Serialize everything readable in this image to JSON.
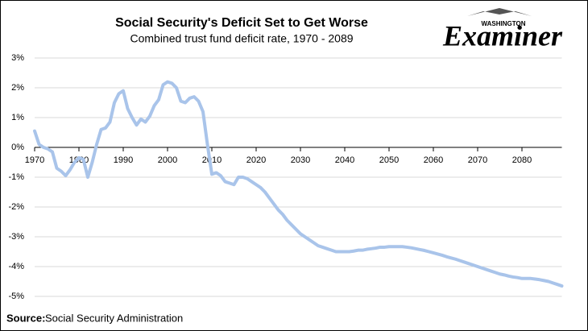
{
  "logo": {
    "small": "WASHINGTON",
    "large": "Examiner"
  },
  "chart_data": {
    "type": "line",
    "title": "Social Security's Deficit Set to Get Worse",
    "subtitle": "Combined trust fund deficit rate, 1970 - 2089",
    "source_label": "Source:",
    "source": "Social Security Administration",
    "x": [
      1970,
      1971,
      1972,
      1973,
      1974,
      1975,
      1976,
      1977,
      1978,
      1979,
      1980,
      1981,
      1982,
      1983,
      1984,
      1985,
      1986,
      1987,
      1988,
      1989,
      1990,
      1991,
      1992,
      1993,
      1994,
      1995,
      1996,
      1997,
      1998,
      1999,
      2000,
      2001,
      2002,
      2003,
      2004,
      2005,
      2006,
      2007,
      2008,
      2009,
      2010,
      2011,
      2012,
      2013,
      2014,
      2015,
      2016,
      2017,
      2018,
      2019,
      2020,
      2021,
      2022,
      2023,
      2024,
      2025,
      2026,
      2027,
      2028,
      2029,
      2030,
      2031,
      2032,
      2033,
      2034,
      2035,
      2036,
      2037,
      2038,
      2039,
      2040,
      2041,
      2042,
      2043,
      2044,
      2045,
      2046,
      2047,
      2048,
      2049,
      2050,
      2051,
      2052,
      2053,
      2054,
      2055,
      2056,
      2057,
      2058,
      2059,
      2060,
      2061,
      2062,
      2063,
      2064,
      2065,
      2066,
      2067,
      2068,
      2069,
      2070,
      2071,
      2072,
      2073,
      2074,
      2075,
      2076,
      2077,
      2078,
      2079,
      2080,
      2081,
      2082,
      2083,
      2084,
      2085,
      2086,
      2087,
      2088,
      2089
    ],
    "series": [
      {
        "name": "Combined trust fund deficit rate",
        "color": "#a9c4ea",
        "values": [
          0.55,
          0.1,
          0.0,
          -0.05,
          -0.15,
          -0.7,
          -0.8,
          -0.95,
          -0.75,
          -0.5,
          -0.35,
          -0.4,
          -1.0,
          -0.5,
          0.1,
          0.6,
          0.65,
          0.85,
          1.5,
          1.8,
          1.9,
          1.3,
          1.0,
          0.75,
          0.95,
          0.85,
          1.05,
          1.4,
          1.6,
          2.1,
          2.2,
          2.15,
          2.0,
          1.55,
          1.5,
          1.65,
          1.7,
          1.55,
          1.2,
          0.1,
          -0.9,
          -0.85,
          -0.95,
          -1.15,
          -1.2,
          -1.25,
          -1.0,
          -1.0,
          -1.05,
          -1.15,
          -1.25,
          -1.35,
          -1.5,
          -1.7,
          -1.9,
          -2.1,
          -2.25,
          -2.45,
          -2.6,
          -2.75,
          -2.9,
          -3.0,
          -3.1,
          -3.2,
          -3.3,
          -3.35,
          -3.4,
          -3.45,
          -3.5,
          -3.5,
          -3.5,
          -3.5,
          -3.48,
          -3.45,
          -3.45,
          -3.42,
          -3.4,
          -3.38,
          -3.35,
          -3.35,
          -3.33,
          -3.33,
          -3.33,
          -3.33,
          -3.35,
          -3.37,
          -3.4,
          -3.43,
          -3.46,
          -3.5,
          -3.54,
          -3.58,
          -3.62,
          -3.67,
          -3.71,
          -3.75,
          -3.8,
          -3.85,
          -3.9,
          -3.95,
          -4.0,
          -4.05,
          -4.1,
          -4.15,
          -4.2,
          -4.25,
          -4.28,
          -4.32,
          -4.35,
          -4.37,
          -4.4,
          -4.4,
          -4.4,
          -4.42,
          -4.44,
          -4.47,
          -4.5,
          -4.55,
          -4.6,
          -4.65
        ]
      }
    ],
    "xlim": [
      1970,
      2089
    ],
    "xticks": [
      1970,
      1980,
      1990,
      2000,
      2010,
      2020,
      2030,
      2040,
      2050,
      2060,
      2070,
      2080
    ],
    "ylim": [
      -5,
      3
    ],
    "yticks": [
      {
        "value": -5,
        "label": "-5%"
      },
      {
        "value": -4,
        "label": "-4%"
      },
      {
        "value": -3,
        "label": "-3%"
      },
      {
        "value": -2,
        "label": "-2%"
      },
      {
        "value": -1,
        "label": "-1%"
      },
      {
        "value": 0,
        "label": "0%"
      },
      {
        "value": 1,
        "label": "1%"
      },
      {
        "value": 2,
        "label": "2%"
      },
      {
        "value": 3,
        "label": "3%"
      }
    ],
    "grid": true
  }
}
